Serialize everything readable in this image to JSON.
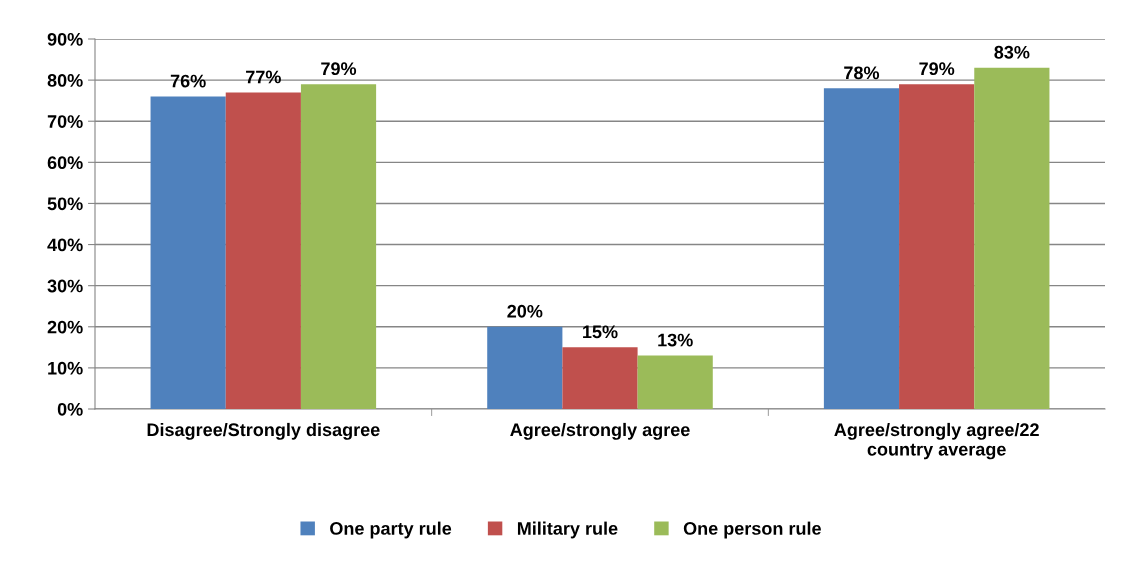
{
  "chart_data": {
    "type": "bar",
    "categories": [
      "Disagree/Strongly disagree",
      "Agree/strongly agree",
      "Agree/strongly agree/22\ncountry average"
    ],
    "series": [
      {
        "name": "One party rule",
        "color": "#4f81bd",
        "values": [
          76,
          20,
          78
        ],
        "value_labels": [
          "76%",
          "20%",
          "78%"
        ]
      },
      {
        "name": "Military rule",
        "color": "#c0504d",
        "values": [
          77,
          15,
          79
        ],
        "value_labels": [
          "77%",
          "15%",
          "79%"
        ]
      },
      {
        "name": "One person rule",
        "color": "#9bbb59",
        "values": [
          79,
          13,
          83
        ],
        "value_labels": [
          "79%",
          "13%",
          "83%"
        ]
      }
    ],
    "ylim": [
      0,
      90
    ],
    "yticks": [
      {
        "value": 0,
        "label": "0%"
      },
      {
        "value": 10,
        "label": "10%"
      },
      {
        "value": 20,
        "label": "20%"
      },
      {
        "value": 30,
        "label": "30%"
      },
      {
        "value": 40,
        "label": "40%"
      },
      {
        "value": 50,
        "label": "50%"
      },
      {
        "value": 60,
        "label": "60%"
      },
      {
        "value": 70,
        "label": "70%"
      },
      {
        "value": 80,
        "label": "80%"
      },
      {
        "value": 90,
        "label": "90%"
      }
    ],
    "grid": "y",
    "legend": "bottom"
  }
}
